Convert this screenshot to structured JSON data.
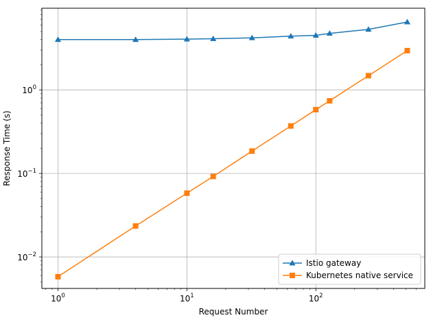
{
  "chart_data": {
    "type": "line",
    "xscale": "log",
    "yscale": "log",
    "xlabel": "Request Number",
    "ylabel": "Response Time (s)",
    "xlim": [
      0.75,
      700
    ],
    "ylim": [
      0.0042,
      9.5
    ],
    "grid": true,
    "legend_position": "bottom-right",
    "x_ticks": [
      {
        "value": 1,
        "base": "10",
        "exp": "0"
      },
      {
        "value": 10,
        "base": "10",
        "exp": "1"
      },
      {
        "value": 100,
        "base": "10",
        "exp": "2"
      }
    ],
    "y_ticks": [
      {
        "value": 0.01,
        "base": "10",
        "exp": "−2"
      },
      {
        "value": 0.1,
        "base": "10",
        "exp": "−1"
      },
      {
        "value": 1,
        "base": "10",
        "exp": "0"
      }
    ],
    "series": [
      {
        "name": "Istio gateway",
        "color": "#1f77b4",
        "marker": "triangle",
        "x": [
          1,
          4,
          10,
          16,
          32,
          64,
          100,
          128,
          256,
          512
        ],
        "y": [
          4.0,
          4.0,
          4.05,
          4.1,
          4.2,
          4.4,
          4.5,
          4.75,
          5.3,
          6.5
        ]
      },
      {
        "name": "Kubernetes native service",
        "color": "#ff7f0e",
        "marker": "square",
        "x": [
          1,
          4,
          10,
          16,
          32,
          64,
          100,
          128,
          256,
          512
        ],
        "y": [
          0.0058,
          0.0235,
          0.058,
          0.092,
          0.185,
          0.37,
          0.58,
          0.74,
          1.48,
          2.95
        ]
      }
    ]
  }
}
